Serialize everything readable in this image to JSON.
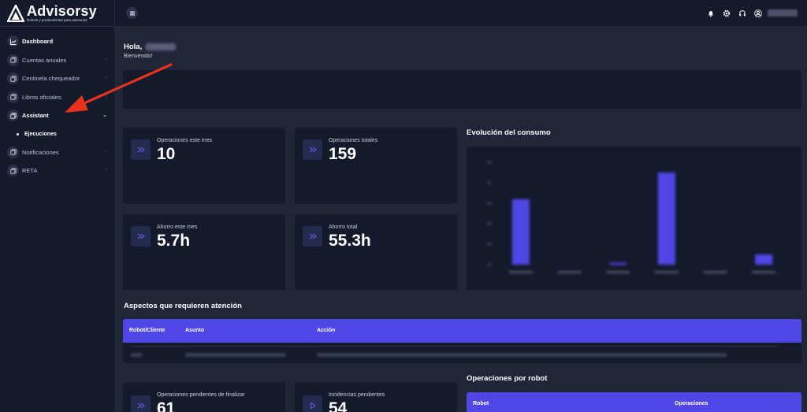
{
  "brand": {
    "name": "Advisorsy",
    "tagline": "Robots y productividad para asesorías",
    "colors": {
      "accent": "#5046e5",
      "background": "#1f2638",
      "panel": "#131a2c",
      "arrow": "#e8321e"
    }
  },
  "sidebar": {
    "items": [
      {
        "label": "Dashboard",
        "icon": "chart-icon",
        "active": true
      },
      {
        "label": "Cuentas anuales",
        "icon": "stack-icon"
      },
      {
        "label": "Centinela chequeador",
        "icon": "stack-icon"
      },
      {
        "label": "Libros oficiales",
        "icon": "stack-icon"
      },
      {
        "label": "Assistant",
        "icon": "stack-icon",
        "open": true
      },
      {
        "label": "Notificaciones",
        "icon": "stack-icon"
      },
      {
        "label": "RETA",
        "icon": "stack-icon"
      }
    ],
    "subitems": [
      {
        "label": "Ejecuciones"
      }
    ]
  },
  "topbar": {
    "icons": [
      "bell-icon",
      "gear-icon",
      "headset-icon",
      "user-icon"
    ]
  },
  "main": {
    "greeting": "Hola,",
    "welcome": "Bienvenido!",
    "cards": [
      {
        "label": "Operaciones este mes",
        "value": "10"
      },
      {
        "label": "Operaciones totales",
        "value": "159"
      },
      {
        "label": "Ahorro este mes",
        "value": "5.7h"
      },
      {
        "label": "Ahorro total",
        "value": "55.3h"
      }
    ],
    "bottom_cards": [
      {
        "label": "Operaciones pendientes de finalizar",
        "value": "61"
      },
      {
        "label": "Incidencias pendientes",
        "value": "54"
      }
    ],
    "consumo_title": "Evolución del consumo",
    "aspectos_title": "Aspectos que requieren atención",
    "aspectos_table": {
      "columns": [
        "Robot/Cliente",
        "Asunto",
        "Acción"
      ]
    },
    "robot_title": "Operaciones por robot",
    "robot_table": {
      "columns": [
        "Robot",
        "Operaciones"
      ]
    }
  },
  "chart_data": {
    "type": "bar",
    "categories": [
      "",
      "",
      "",
      "",
      "",
      ""
    ],
    "values": [
      64,
      0,
      2,
      90,
      0,
      10
    ],
    "ylim": [
      0,
      100
    ],
    "grid": false
  }
}
